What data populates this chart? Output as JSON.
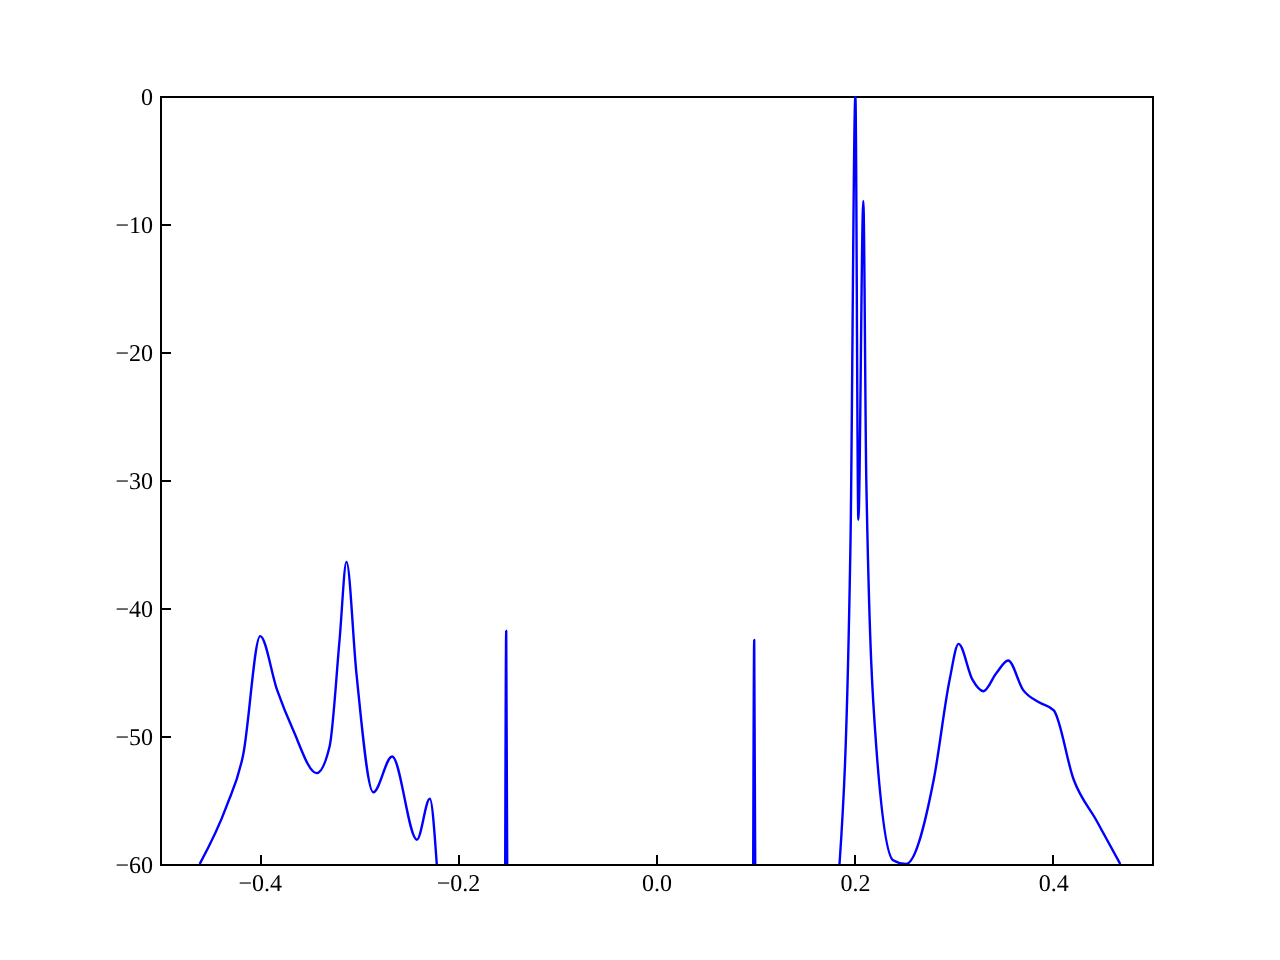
{
  "chart_data": {
    "type": "line",
    "x": [
      -0.46,
      -0.433,
      -0.416,
      -0.399,
      -0.382,
      -0.366,
      -0.342,
      -0.329,
      -0.319,
      -0.312,
      -0.302,
      -0.285,
      -0.266,
      -0.241,
      -0.228,
      -0.221,
      -0.2,
      -0.152,
      -0.151,
      -0.15,
      -0.1,
      0.098,
      0.099,
      0.1,
      0.15,
      0.185,
      0.196,
      0.201,
      0.204,
      0.209,
      0.212,
      0.222,
      0.239,
      0.252,
      0.28,
      0.296,
      0.305,
      0.319,
      0.33,
      0.343,
      0.355,
      0.37,
      0.387,
      0.401,
      0.421,
      0.444,
      0.468
    ],
    "series": [
      {
        "color": "#0000ff",
        "values": [
          -60,
          -55.5,
          -51.4,
          -42.2,
          -46.4,
          -49.5,
          -52.9,
          -50.8,
          -42.5,
          -36.4,
          -45.1,
          -54.4,
          -51.6,
          -58.1,
          -54.9,
          -60,
          null,
          -60,
          -41.8,
          -60,
          null,
          -60,
          -42.5,
          -60,
          null,
          -60,
          -35.2,
          0,
          -33.1,
          -8.2,
          -30,
          -50.8,
          -59.7,
          -60,
          -53.4,
          -45.6,
          -42.8,
          -45.6,
          -46.5,
          -45.1,
          -44.1,
          -46.4,
          -47.4,
          -48,
          -53.4,
          -56.6,
          -60
        ]
      }
    ],
    "xlim": [
      -0.5,
      0.5
    ],
    "ylim": [
      -60,
      0
    ],
    "xticks": [
      {
        "value": -0.4,
        "label": "−0.4"
      },
      {
        "value": -0.2,
        "label": "−0.2"
      },
      {
        "value": 0,
        "label": "0.0"
      },
      {
        "value": 0.2,
        "label": "0.2"
      },
      {
        "value": 0.4,
        "label": "0.4"
      }
    ],
    "yticks": [
      {
        "value": -60,
        "label": "−60"
      },
      {
        "value": -50,
        "label": "−50"
      },
      {
        "value": -40,
        "label": "−40"
      },
      {
        "value": -30,
        "label": "−30"
      },
      {
        "value": -20,
        "label": "−20"
      },
      {
        "value": -10,
        "label": "−10"
      },
      {
        "value": 0,
        "label": "0"
      }
    ],
    "grid": false,
    "marker": "none",
    "line_style": "solid"
  }
}
